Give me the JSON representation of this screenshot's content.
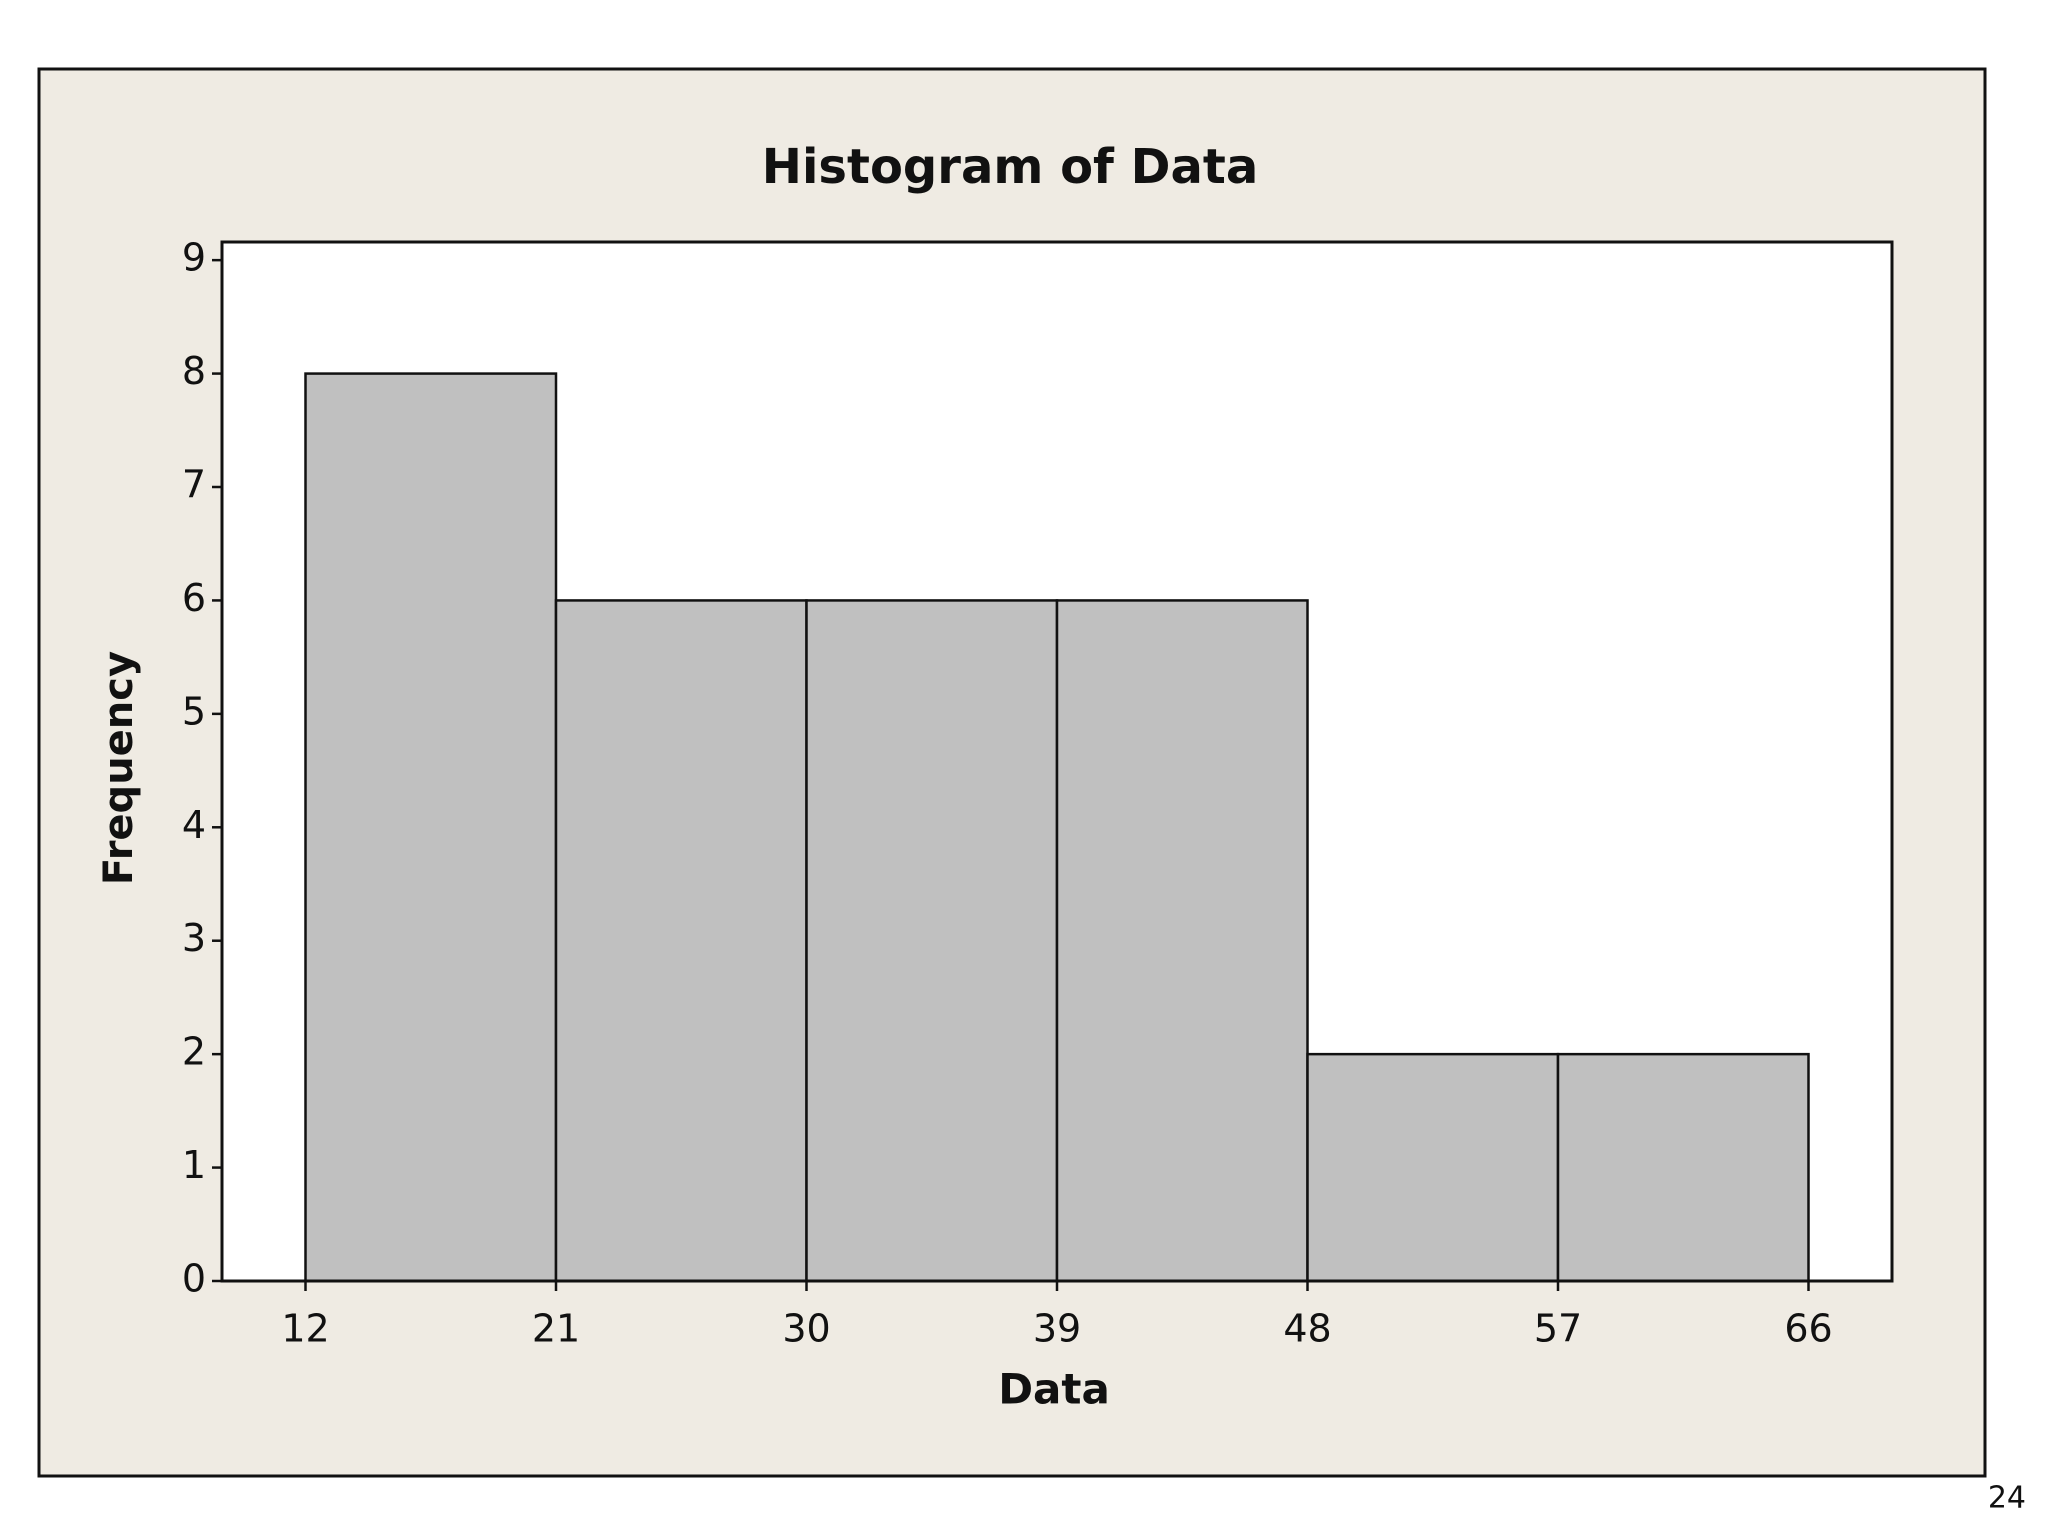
{
  "chart_data": {
    "type": "histogram",
    "title": "Histogram of Data",
    "x_label": "Data",
    "y_label": "Frequency",
    "bins": [
      12,
      21,
      30,
      39,
      48,
      57,
      66
    ],
    "values": [
      8,
      6,
      6,
      6,
      2,
      2
    ],
    "color": "#c0c0c0",
    "xlim": [
      9,
      69
    ],
    "xticks": [
      12,
      21,
      30,
      39,
      48,
      57,
      66
    ],
    "ylim": [
      0,
      9.16
    ],
    "yticks": [
      0,
      1,
      2,
      3,
      4,
      5,
      6,
      7,
      8,
      9
    ],
    "grid": false
  },
  "page_number": "24"
}
